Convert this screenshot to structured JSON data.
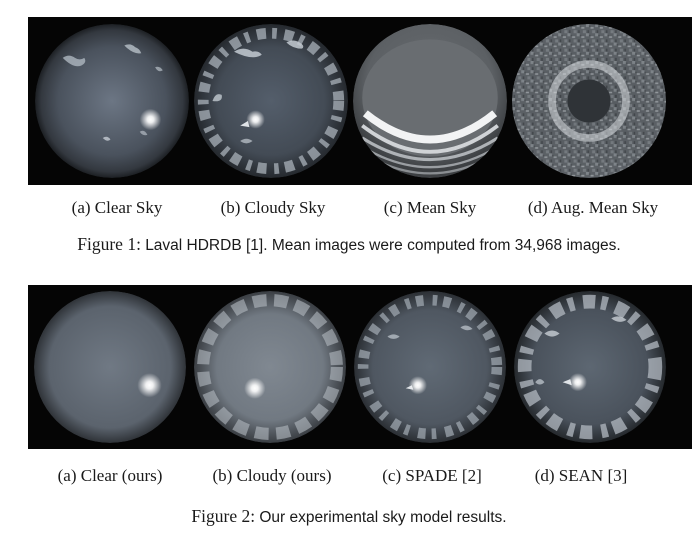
{
  "figure1": {
    "label": "Figure 1:",
    "text": "Laval HDRDB [1]. Mean images were computed from 34,968 images.",
    "panels": [
      {
        "caption": "(a) Clear Sky",
        "image": "clear-sky-fisheye-image"
      },
      {
        "caption": "(b) Cloudy Sky",
        "image": "cloudy-sky-fisheye-image"
      },
      {
        "caption": "(c) Mean Sky",
        "image": "mean-sky-fisheye-image"
      },
      {
        "caption": "(d) Aug. Mean Sky",
        "image": "augmented-mean-sky-fisheye-image"
      }
    ]
  },
  "figure2": {
    "label": "Figure 2:",
    "text": "Our experimental sky model results.",
    "panels": [
      {
        "caption": "(a) Clear (ours)",
        "image": "clear-ours-sky-image"
      },
      {
        "caption": "(b) Cloudy (ours)",
        "image": "cloudy-ours-sky-image"
      },
      {
        "caption": "(c) SPADE [2]",
        "image": "spade-sky-image"
      },
      {
        "caption": "(d) SEAN [3]",
        "image": "sean-sky-image"
      }
    ]
  },
  "colors": {
    "background": "#ffffff",
    "image_strip": "#050505",
    "sky_center": "#7f8894",
    "sky_edge": "#2a2e34",
    "cloud": "#c9ced3",
    "sun": "#ffffff",
    "text": "#1a1a1a"
  }
}
